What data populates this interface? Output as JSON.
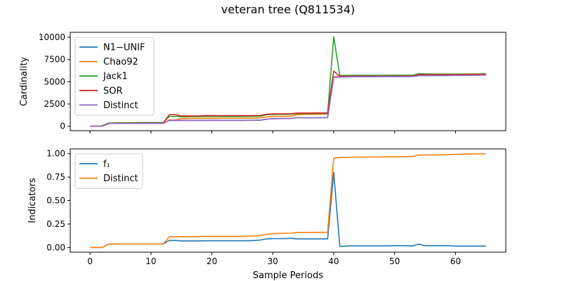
{
  "figure": {
    "title": "veteran tree (Q811534)"
  },
  "chart_data": [
    {
      "type": "line",
      "ylabel": "Cardinality",
      "xlabel": "",
      "xlim": [
        -3.25,
        68.25
      ],
      "ylim": [
        -500,
        10550
      ],
      "xticks": [
        0,
        10,
        20,
        30,
        40,
        50,
        60
      ],
      "yticks": [
        0,
        2500,
        5000,
        7500,
        10000
      ],
      "ytick_labels": [
        "0",
        "2500",
        "5000",
        "7500",
        "10000"
      ],
      "show_xtick_labels": false,
      "legend": "top-left",
      "series": [
        {
          "name": "N1−UNIF",
          "color": "#1f77b4",
          "values": [
            0,
            0,
            0,
            300,
            320,
            320,
            330,
            330,
            330,
            330,
            330,
            330,
            330,
            650,
            650,
            650,
            650,
            650,
            660,
            660,
            660,
            660,
            660,
            660,
            660,
            660,
            670,
            680,
            690,
            800,
            850,
            860,
            870,
            880,
            950,
            950,
            950,
            950,
            960,
            960,
            5500,
            5520,
            5540,
            5560,
            5570,
            5570,
            5570,
            5570,
            5580,
            5580,
            5580,
            5580,
            5580,
            5590,
            5700,
            5700,
            5700,
            5700,
            5700,
            5710,
            5720,
            5720,
            5730,
            5740,
            5750,
            5760
          ]
        },
        {
          "name": "Chao92",
          "color": "#ff7f0e",
          "values": [
            0,
            0,
            0,
            300,
            320,
            320,
            330,
            330,
            330,
            330,
            330,
            330,
            330,
            700,
            700,
            850,
            870,
            880,
            890,
            890,
            890,
            890,
            900,
            900,
            900,
            900,
            910,
            920,
            930,
            1050,
            1100,
            1100,
            1120,
            1130,
            1300,
            1320,
            1330,
            1340,
            1350,
            1360,
            5550,
            5570,
            5590,
            5610,
            5620,
            5620,
            5620,
            5620,
            5630,
            5630,
            5630,
            5630,
            5630,
            5640,
            5750,
            5750,
            5750,
            5750,
            5750,
            5760,
            5770,
            5770,
            5780,
            5790,
            5800,
            5810
          ]
        },
        {
          "name": "Jack1",
          "color": "#2ca02c",
          "values": [
            0,
            0,
            50,
            350,
            370,
            380,
            390,
            390,
            400,
            400,
            400,
            400,
            400,
            1100,
            1100,
            1050,
            1060,
            1070,
            1080,
            1090,
            1090,
            1090,
            1090,
            1090,
            1090,
            1090,
            1100,
            1110,
            1120,
            1300,
            1320,
            1330,
            1340,
            1350,
            1420,
            1420,
            1420,
            1430,
            1430,
            1440,
            10050,
            5700,
            5710,
            5720,
            5720,
            5720,
            5720,
            5720,
            5720,
            5720,
            5730,
            5730,
            5730,
            5740,
            5900,
            5880,
            5860,
            5860,
            5860,
            5860,
            5860,
            5860,
            5870,
            5870,
            5880,
            5890
          ]
        },
        {
          "name": "SOR",
          "color": "#d62728",
          "values": [
            0,
            0,
            0,
            300,
            320,
            320,
            330,
            330,
            330,
            330,
            330,
            330,
            330,
            1300,
            1300,
            1150,
            1150,
            1150,
            1160,
            1200,
            1200,
            1190,
            1190,
            1190,
            1190,
            1190,
            1190,
            1200,
            1210,
            1350,
            1380,
            1390,
            1400,
            1410,
            1480,
            1480,
            1480,
            1490,
            1490,
            1500,
            6200,
            5600,
            5610,
            5620,
            5620,
            5620,
            5620,
            5620,
            5620,
            5620,
            5620,
            5630,
            5630,
            5640,
            5800,
            5780,
            5780,
            5790,
            5790,
            5800,
            5800,
            5810,
            5810,
            5820,
            5830,
            5840
          ]
        },
        {
          "name": "Distinct",
          "color": "#9467bd",
          "values": [
            0,
            0,
            0,
            300,
            310,
            310,
            310,
            310,
            310,
            310,
            310,
            310,
            310,
            650,
            650,
            650,
            650,
            650,
            650,
            650,
            650,
            650,
            650,
            650,
            650,
            650,
            660,
            670,
            680,
            800,
            850,
            860,
            870,
            880,
            950,
            950,
            950,
            950,
            960,
            960,
            5500,
            5520,
            5540,
            5560,
            5570,
            5570,
            5570,
            5570,
            5580,
            5580,
            5580,
            5580,
            5580,
            5590,
            5680,
            5680,
            5690,
            5690,
            5690,
            5700,
            5710,
            5710,
            5720,
            5730,
            5740,
            5750
          ]
        }
      ]
    },
    {
      "type": "line",
      "ylabel": "Indicators",
      "xlabel": "Sample Periods",
      "xlim": [
        -3.25,
        68.25
      ],
      "ylim": [
        -0.05,
        1.05
      ],
      "xticks": [
        0,
        10,
        20,
        30,
        40,
        50,
        60
      ],
      "xtick_labels": [
        "0",
        "10",
        "20",
        "30",
        "40",
        "50",
        "60"
      ],
      "yticks": [
        0,
        0.25,
        0.5,
        0.75,
        1.0
      ],
      "ytick_labels": [
        "0.00",
        "0.25",
        "0.50",
        "0.75",
        "1.00"
      ],
      "show_xtick_labels": true,
      "legend": "top-left",
      "series": [
        {
          "name": "f₁",
          "color": "#1f77b4",
          "values": [
            0,
            0,
            0,
            0.035,
            0.037,
            0.037,
            0.037,
            0.037,
            0.037,
            0.037,
            0.037,
            0.037,
            0.037,
            0.075,
            0.075,
            0.07,
            0.07,
            0.07,
            0.07,
            0.072,
            0.072,
            0.072,
            0.072,
            0.072,
            0.072,
            0.072,
            0.072,
            0.075,
            0.08,
            0.092,
            0.095,
            0.095,
            0.095,
            0.098,
            0.092,
            0.092,
            0.092,
            0.092,
            0.092,
            0.092,
            0.8,
            0.012,
            0.015,
            0.018,
            0.018,
            0.018,
            0.018,
            0.018,
            0.018,
            0.018,
            0.02,
            0.02,
            0.018,
            0.018,
            0.035,
            0.02,
            0.02,
            0.02,
            0.02,
            0.02,
            0.015,
            0.015,
            0.015,
            0.015,
            0.015,
            0.015
          ]
        },
        {
          "name": "Distinct",
          "color": "#ff7f0e",
          "values": [
            0,
            0,
            0,
            0.035,
            0.037,
            0.037,
            0.037,
            0.037,
            0.037,
            0.037,
            0.037,
            0.037,
            0.037,
            0.113,
            0.115,
            0.115,
            0.116,
            0.116,
            0.117,
            0.118,
            0.118,
            0.118,
            0.118,
            0.118,
            0.118,
            0.118,
            0.12,
            0.123,
            0.128,
            0.14,
            0.148,
            0.15,
            0.152,
            0.153,
            0.16,
            0.16,
            0.161,
            0.161,
            0.162,
            0.162,
            0.955,
            0.957,
            0.96,
            0.962,
            0.963,
            0.963,
            0.964,
            0.964,
            0.965,
            0.965,
            0.966,
            0.967,
            0.968,
            0.97,
            0.985,
            0.986,
            0.987,
            0.987,
            0.988,
            0.99,
            0.993,
            0.994,
            0.995,
            0.996,
            0.997,
            0.998
          ]
        }
      ]
    }
  ]
}
